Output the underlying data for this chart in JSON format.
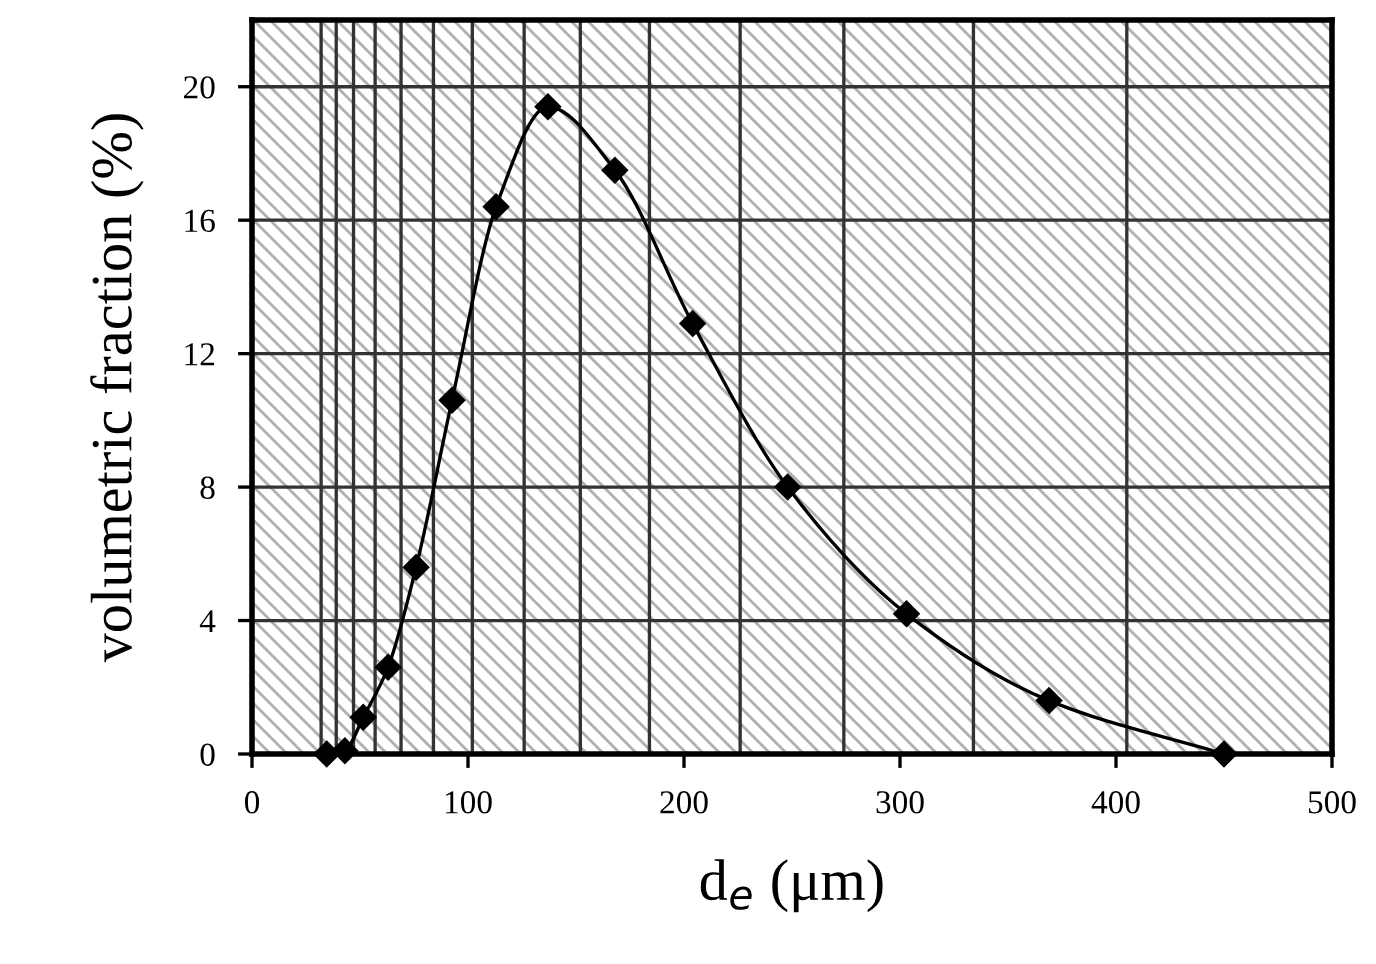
{
  "chart_data": {
    "type": "line",
    "xlabel": "d$_{e}$ (μm)",
    "ylabel": "volumetric fraction (%)",
    "x": [
      34.6,
      43,
      51.5,
      63,
      76,
      92.6,
      113,
      137,
      168,
      204,
      248,
      303,
      369,
      450
    ],
    "series": [
      {
        "color": "#000000",
        "values": [
          0,
          0.1,
          1.1,
          2.6,
          5.6,
          10.6,
          16.4,
          19.4,
          17.5,
          12.9,
          8.0,
          4.2,
          1.6,
          0
        ]
      }
    ],
    "marker": "diamond",
    "line_style": "solid",
    "xlim": [
      0,
      500
    ],
    "xticks": [
      0,
      100,
      200,
      300,
      400,
      500
    ],
    "ylim": [
      0,
      22
    ],
    "yticks": [
      0,
      4,
      8,
      12,
      16,
      20
    ],
    "grid": "y",
    "legend": false,
    "ref_lines": [
      {
        "axis": "x",
        "value": 32
      },
      {
        "axis": "x",
        "value": 39
      },
      {
        "axis": "x",
        "value": 47
      },
      {
        "axis": "x",
        "value": 57
      },
      {
        "axis": "x",
        "value": 69
      },
      {
        "axis": "x",
        "value": 84
      },
      {
        "axis": "x",
        "value": 102
      },
      {
        "axis": "x",
        "value": 126
      },
      {
        "axis": "x",
        "value": 152
      },
      {
        "axis": "x",
        "value": 184
      },
      {
        "axis": "x",
        "value": 226
      },
      {
        "axis": "x",
        "value": 274
      },
      {
        "axis": "x",
        "value": 334
      },
      {
        "axis": "x",
        "value": 405
      }
    ]
  }
}
